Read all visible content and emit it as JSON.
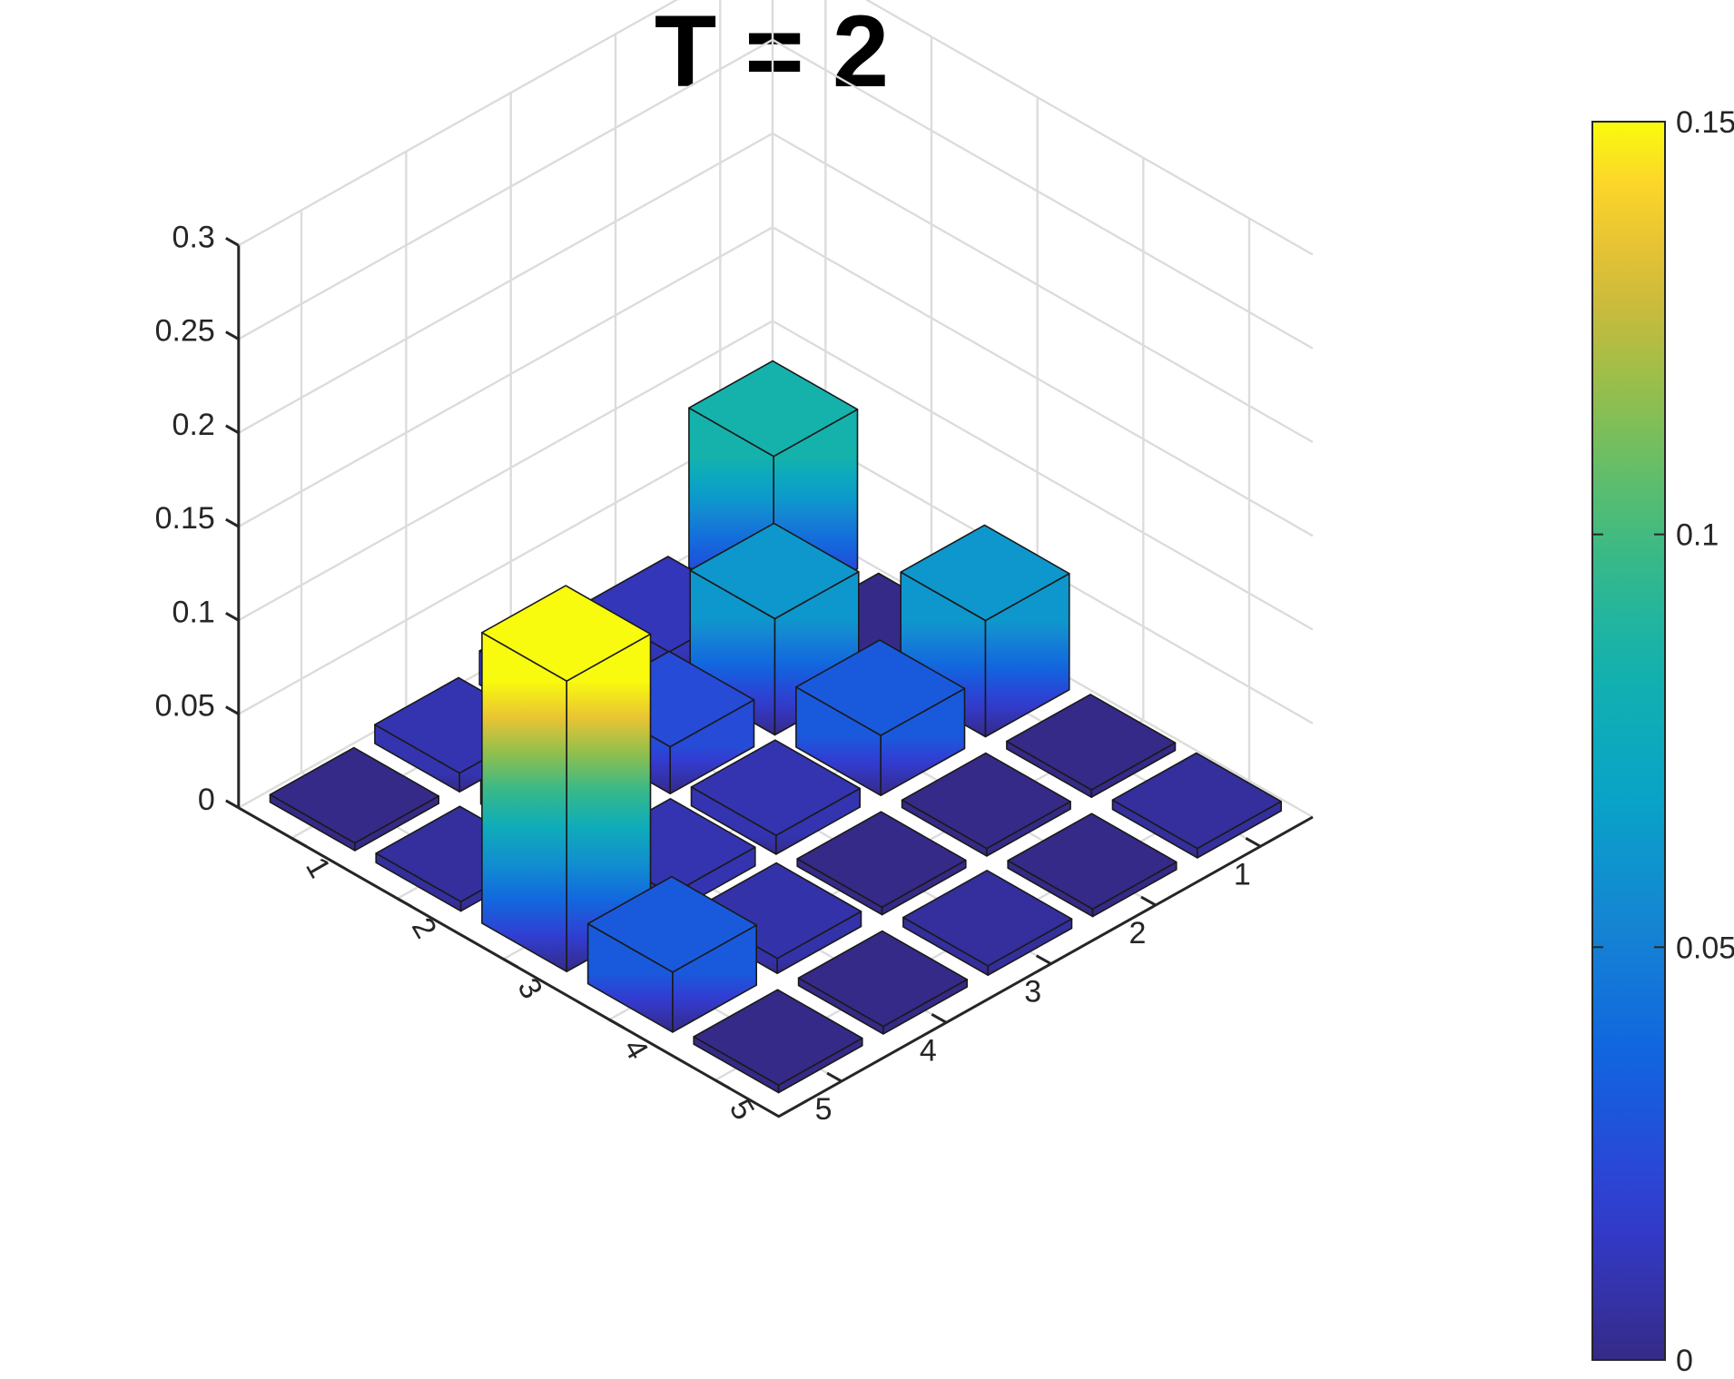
{
  "chart_data": {
    "type": "bar3",
    "title": "T = 2",
    "rows": [
      "1",
      "2",
      "3",
      "4",
      "5"
    ],
    "columns": [
      "1",
      "2",
      "3",
      "4",
      "5"
    ],
    "values": [
      [
        0.085,
        0.0,
        0.062,
        0.0,
        0.005
      ],
      [
        0.012,
        0.062,
        0.032,
        0.0,
        0.0
      ],
      [
        0.018,
        0.025,
        0.01,
        0.0,
        0.005
      ],
      [
        0.01,
        0.012,
        0.01,
        0.008,
        0.0
      ],
      [
        0.0,
        0.005,
        0.155,
        0.032,
        0.0
      ]
    ],
    "z_ticks": [
      "0",
      "0.05",
      "0.1",
      "0.15",
      "0.2",
      "0.25",
      "0.3"
    ],
    "zlim": [
      0,
      0.3
    ],
    "colorbar": {
      "ticks": [
        "0",
        "0.05",
        "0.1",
        "0.15"
      ],
      "range": [
        0,
        0.15
      ],
      "colormap": "parula"
    },
    "grid": true
  }
}
